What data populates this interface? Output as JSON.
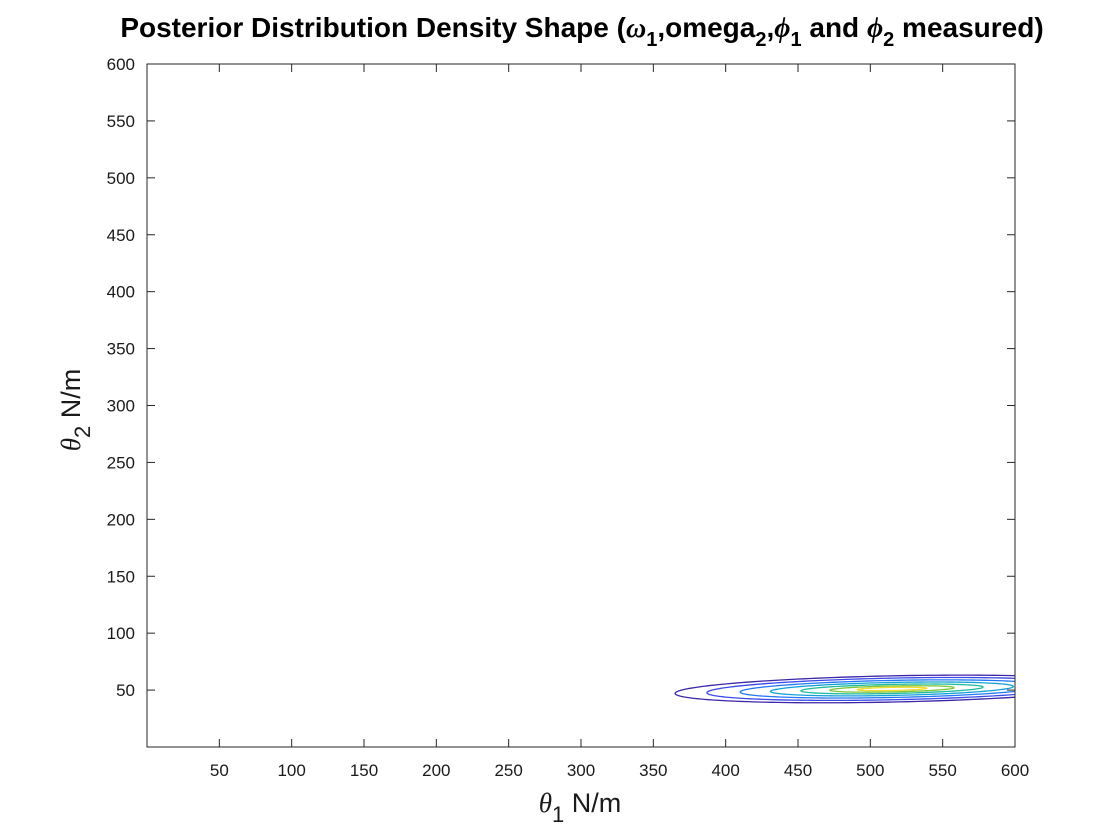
{
  "chart_data": {
    "type": "contour",
    "title": {
      "prefix": "Posterior Distribution Density Shape (",
      "omega": "ω",
      "omega_sub": "1",
      "mid1": ",omega",
      "omega2_sub": "2",
      "comma": ",",
      "phi1": "ϕ",
      "phi1_sub": "1",
      "and": " and ",
      "phi2": "ϕ",
      "phi2_sub": "2",
      "suffix": " measured)"
    },
    "xlabel": {
      "sym": "θ",
      "sub": "1",
      "unit": " N/m"
    },
    "ylabel": {
      "sym": "θ",
      "sub": "2",
      "unit": " N/m"
    },
    "xlim": [
      0,
      600
    ],
    "ylim": [
      0,
      600
    ],
    "xticks": [
      50,
      100,
      150,
      200,
      250,
      300,
      350,
      400,
      450,
      500,
      550,
      600
    ],
    "yticks": [
      50,
      100,
      150,
      200,
      250,
      300,
      350,
      400,
      450,
      500,
      550,
      600
    ],
    "grid": false,
    "box": true,
    "contour": {
      "center": [
        515,
        51
      ],
      "major_axis_angle_deg": 1.5,
      "levels": [
        {
          "level": 1,
          "color": "#3d26a8",
          "semi_major": 150,
          "semi_minor": 11.5
        },
        {
          "level": 2,
          "color": "#3b4ae8",
          "semi_major": 128,
          "semi_minor": 9.5
        },
        {
          "level": 3,
          "color": "#2578f5",
          "semi_major": 105,
          "semi_minor": 7.5
        },
        {
          "level": 4,
          "color": "#15a0d8",
          "semi_major": 84,
          "semi_minor": 5.7
        },
        {
          "level": 5,
          "color": "#1ebba0",
          "semi_major": 63,
          "semi_minor": 4.0
        },
        {
          "level": 6,
          "color": "#80c63c",
          "semi_major": 43,
          "semi_minor": 2.6
        },
        {
          "level": 7,
          "color": "#f2dc2c",
          "semi_major": 24,
          "semi_minor": 1.4
        }
      ]
    }
  }
}
